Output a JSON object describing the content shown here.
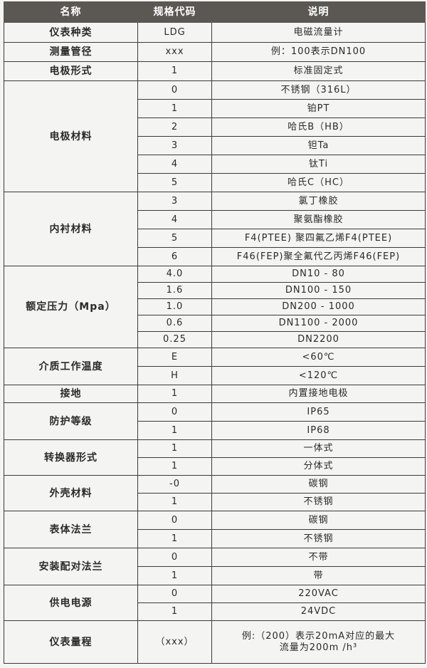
{
  "header": {
    "name": "名称",
    "code": "规格代码",
    "desc": "说明"
  },
  "groups": [
    {
      "name": "仪表种类",
      "rows": [
        [
          "LDG",
          "电磁流量计"
        ]
      ]
    },
    {
      "name": "测量管径",
      "rows": [
        [
          "xxx",
          "例：100表示DN100"
        ]
      ]
    },
    {
      "name": "电极形式",
      "rows": [
        [
          "1",
          "标准固定式"
        ]
      ]
    },
    {
      "name": "电极材料",
      "rows": [
        [
          "0",
          "不锈钢（316L）"
        ],
        [
          "1",
          "铂PT"
        ],
        [
          "2",
          "哈氏B（HB）"
        ],
        [
          "3",
          "钽Ta"
        ],
        [
          "4",
          "钛Ti"
        ],
        [
          "5",
          "哈氏C（HC）"
        ]
      ]
    },
    {
      "name": "内衬材料",
      "rows": [
        [
          "3",
          "氯丁橡胶"
        ],
        [
          "4",
          "聚氨酯橡胶"
        ],
        [
          "5",
          "F4(PTEE) 聚四氟乙烯F4(PTEE)"
        ],
        [
          "6",
          "F46(FEP)聚全氟代乙丙烯F46(FEP)"
        ]
      ]
    },
    {
      "name": "额定压力（Mpa）",
      "rows": [
        [
          "4.0",
          "DN10 - 80"
        ],
        [
          "1.6",
          "DN100 - 150"
        ],
        [
          "1.0",
          "DN200 - 1000"
        ],
        [
          "0.6",
          "DN1100 - 2000"
        ],
        [
          "0.25",
          "DN2200"
        ]
      ]
    },
    {
      "name": "介质工作温度",
      "rows": [
        [
          "E",
          "<60℃"
        ],
        [
          "H",
          "<120℃"
        ]
      ]
    },
    {
      "name": "接地",
      "rows": [
        [
          "1",
          "内置接地电极"
        ]
      ]
    },
    {
      "name": "防护等级",
      "rows": [
        [
          "0",
          "IP65"
        ],
        [
          "1",
          "IP68"
        ]
      ]
    },
    {
      "name": "转换器形式",
      "rows": [
        [
          "1",
          "一体式"
        ],
        [
          "1",
          "分体式"
        ]
      ]
    },
    {
      "name": "外壳材料",
      "rows": [
        [
          "-0",
          "碳钢"
        ],
        [
          "1",
          "不锈钢"
        ]
      ]
    },
    {
      "name": "表体法兰",
      "rows": [
        [
          "0",
          "碳钢"
        ],
        [
          "1",
          "不锈钢"
        ]
      ]
    },
    {
      "name": "安装配对法兰",
      "rows": [
        [
          "0",
          "不带"
        ],
        [
          "1",
          "带"
        ]
      ]
    },
    {
      "name": "供电电源",
      "rows": [
        [
          "0",
          "220VAC"
        ],
        [
          "1",
          "24VDC"
        ]
      ]
    },
    {
      "name": "仪表量程",
      "rows": [
        [
          "（xxx）",
          "例:（200）表示20mA对应的最大\n流量为200m /h³"
        ]
      ]
    }
  ]
}
